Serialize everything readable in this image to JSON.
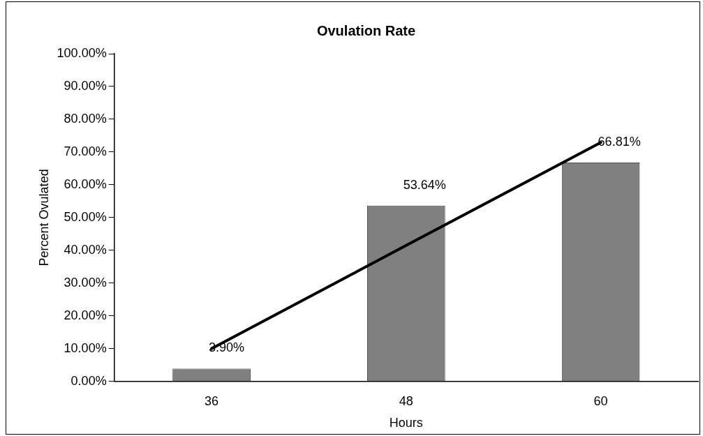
{
  "chart_data": {
    "type": "bar",
    "title": "Ovulation Rate",
    "xlabel": "Hours",
    "ylabel": "Percent Ovulated",
    "categories": [
      "36",
      "48",
      "60"
    ],
    "series": [
      {
        "type": "bar",
        "color": "#808080",
        "values": [
          3.9,
          53.64,
          66.81
        ],
        "value_labels": [
          "3.90%",
          "53.64%",
          "66.81%"
        ]
      },
      {
        "type": "line",
        "color": "#000000",
        "values": [
          10.0,
          41.5,
          72.9
        ]
      }
    ],
    "ylim": [
      0,
      100
    ],
    "yticks": [
      {
        "value": 0,
        "label": "0.00%"
      },
      {
        "value": 10,
        "label": "10.00%"
      },
      {
        "value": 20,
        "label": "20.00%"
      },
      {
        "value": 30,
        "label": "30.00%"
      },
      {
        "value": 40,
        "label": "40.00%"
      },
      {
        "value": 50,
        "label": "50.00%"
      },
      {
        "value": 60,
        "label": "60.00%"
      },
      {
        "value": 70,
        "label": "70.00%"
      },
      {
        "value": 80,
        "label": "80.00%"
      },
      {
        "value": 90,
        "label": "90.00%"
      },
      {
        "value": 100,
        "label": "100.00%"
      }
    ],
    "grid": false,
    "legend": false,
    "marker": "none"
  }
}
